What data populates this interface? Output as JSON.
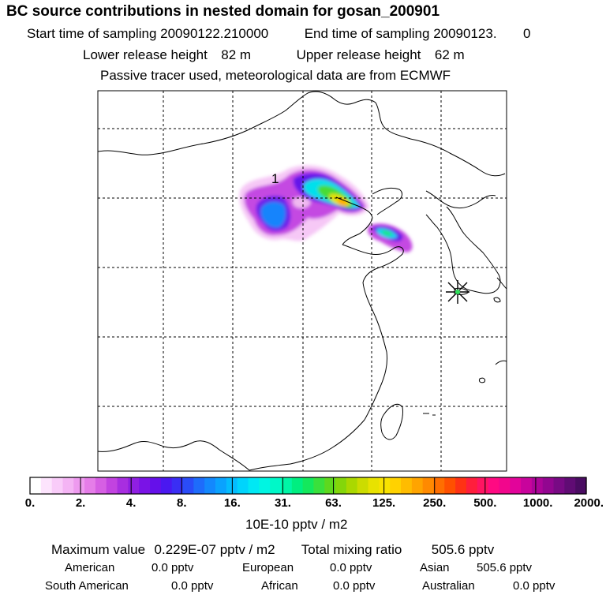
{
  "header": {
    "title": "BC  source contributions in nested domain for gosan_200901",
    "start_label": "Start time of sampling",
    "start_value": "20090122.210000",
    "end_label": "End time of sampling",
    "end_value": "20090123.",
    "end_extra": "0",
    "lower_label": "Lower release height",
    "lower_value": "82 m",
    "upper_label": "Upper release height",
    "upper_value": "62 m",
    "note": "Passive tracer used, meteorological data are from ECMWF"
  },
  "map": {
    "plume_label": "1",
    "colors": {
      "frame": "#000000",
      "grid": "#000000",
      "receptor_star": "#000000"
    }
  },
  "colorbar": {
    "labels": [
      "0.",
      "2.",
      "4.",
      "8.",
      "16.",
      "31.",
      "63.",
      "125.",
      "250.",
      "500.",
      "1000.",
      "2000."
    ],
    "colors": [
      "#ffffff",
      "#fde4fd",
      "#f9ccf9",
      "#f4b4f4",
      "#ee9aef",
      "#e57de8",
      "#d65fe3",
      "#c243e0",
      "#a82ee0",
      "#8f1fe2",
      "#7a13e6",
      "#6510ea",
      "#4a18f0",
      "#3a2ef4",
      "#2a4cf8",
      "#1e6cfb",
      "#1388fd",
      "#0aa2fe",
      "#04bcfe",
      "#00d4fc",
      "#00e8f4",
      "#00f5e2",
      "#00f8c8",
      "#00f5a6",
      "#00ee80",
      "#14e85c",
      "#3ae03c",
      "#5ed81e",
      "#84d60a",
      "#aad800",
      "#ccdc00",
      "#e8e200",
      "#f8e200",
      "#ffd200",
      "#ffbc00",
      "#ffa400",
      "#ff8a00",
      "#ff6e00",
      "#ff5000",
      "#ff3214",
      "#ff1e3c",
      "#ff1462",
      "#ff0a82",
      "#f2068c",
      "#e2049a",
      "#c8049c",
      "#ac0498",
      "#920690",
      "#780a84",
      "#600c74",
      "#4a0c62"
    ],
    "unit": "10E-10 pptv / m2"
  },
  "stats": {
    "max_label": "Maximum value",
    "max_value": "0.229E-07 pptv / m2",
    "total_label": "Total mixing ratio",
    "total_value": "505.6 pptv",
    "regions": [
      {
        "name": "American",
        "value": "0.0 pptv"
      },
      {
        "name": "European",
        "value": "0.0 pptv"
      },
      {
        "name": "Asian",
        "value": "505.6 pptv"
      },
      {
        "name": "South American",
        "value": "0.0 pptv"
      },
      {
        "name": "African",
        "value": "0.0 pptv"
      },
      {
        "name": "Australian",
        "value": "0.0 pptv"
      }
    ]
  }
}
